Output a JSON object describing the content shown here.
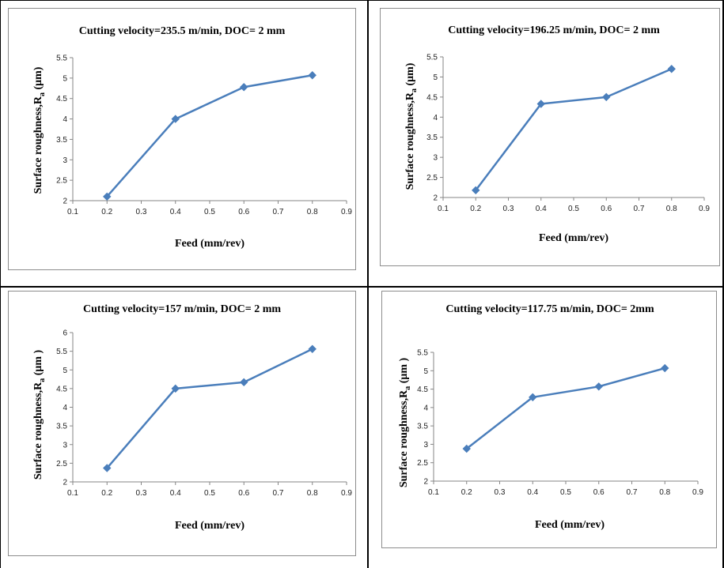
{
  "chart_data": [
    {
      "type": "line",
      "title": "Cutting velocity=235.5 m/min, DOC= 2 mm",
      "xlabel": "Feed (mm/rev)",
      "ylabel": "Surface roughness,R",
      "ylabel_sub": "a",
      "ylabel_unit": " (μm)",
      "x_ticks": [
        "0.1",
        "0.2",
        "0.3",
        "0.4",
        "0.5",
        "0.6",
        "0.7",
        "0.8",
        "0.9"
      ],
      "y_ticks": [
        "2",
        "2.5",
        "3",
        "3.5",
        "4",
        "4.5",
        "5",
        "5.5"
      ],
      "xlim": [
        0.1,
        0.9
      ],
      "ylim": [
        2,
        5.5
      ],
      "x": [
        0.2,
        0.4,
        0.6,
        0.8
      ],
      "series": [
        {
          "values": [
            2.1,
            4.0,
            4.78,
            5.07
          ]
        }
      ],
      "grid": false,
      "color": "#4a7ebb"
    },
    {
      "type": "line",
      "title": "Cutting velocity=196.25 m/min, DOC= 2 mm",
      "xlabel": "Feed (mm/rev)",
      "ylabel": "Surface roughness,R",
      "ylabel_sub": "a",
      "ylabel_unit": " (μm)",
      "x_ticks": [
        "0.1",
        "0.2",
        "0.3",
        "0.4",
        "0.5",
        "0.6",
        "0.7",
        "0.8",
        "0.9"
      ],
      "y_ticks": [
        "2",
        "2.5",
        "3",
        "3.5",
        "4",
        "4.5",
        "5",
        "5.5"
      ],
      "xlim": [
        0.1,
        0.9
      ],
      "ylim": [
        2,
        5.5
      ],
      "x": [
        0.2,
        0.4,
        0.6,
        0.8
      ],
      "series": [
        {
          "values": [
            2.18,
            4.33,
            4.5,
            5.2
          ]
        }
      ],
      "grid": false,
      "color": "#4a7ebb"
    },
    {
      "type": "line",
      "title": "Cutting velocity=157 m/min, DOC= 2 mm",
      "xlabel": "Feed (mm/rev)",
      "ylabel": "Surface roughness,R",
      "ylabel_sub": "a",
      "ylabel_unit": " (μm )",
      "x_ticks": [
        "0.1",
        "0.2",
        "0.3",
        "0.4",
        "0.5",
        "0.6",
        "0.7",
        "0.8",
        "0.9"
      ],
      "y_ticks": [
        "2",
        "2.5",
        "3",
        "3.5",
        "4",
        "4.5",
        "5",
        "5.5",
        "6"
      ],
      "xlim": [
        0.1,
        0.9
      ],
      "ylim": [
        2,
        6
      ],
      "x": [
        0.2,
        0.4,
        0.6,
        0.8
      ],
      "series": [
        {
          "values": [
            2.37,
            4.5,
            4.67,
            5.56
          ]
        }
      ],
      "grid": false,
      "color": "#4a7ebb"
    },
    {
      "type": "line",
      "title": "Cutting velocity=117.75 m/min, DOC= 2mm",
      "xlabel": "Feed (mm/rev)",
      "ylabel": "Surface roughness,R",
      "ylabel_sub": "a",
      "ylabel_unit": " (μm )",
      "x_ticks": [
        "0.1",
        "0.2",
        "0.3",
        "0.4",
        "0.5",
        "0.6",
        "0.7",
        "0.8",
        "0.9"
      ],
      "y_ticks": [
        "2",
        "2.5",
        "3",
        "3.5",
        "4",
        "4.5",
        "5",
        "5.5"
      ],
      "xlim": [
        0.1,
        0.9
      ],
      "ylim": [
        2,
        5.5
      ],
      "x": [
        0.2,
        0.4,
        0.6,
        0.8
      ],
      "series": [
        {
          "values": [
            2.88,
            4.28,
            4.57,
            5.07
          ]
        }
      ],
      "grid": false,
      "color": "#4a7ebb"
    }
  ]
}
